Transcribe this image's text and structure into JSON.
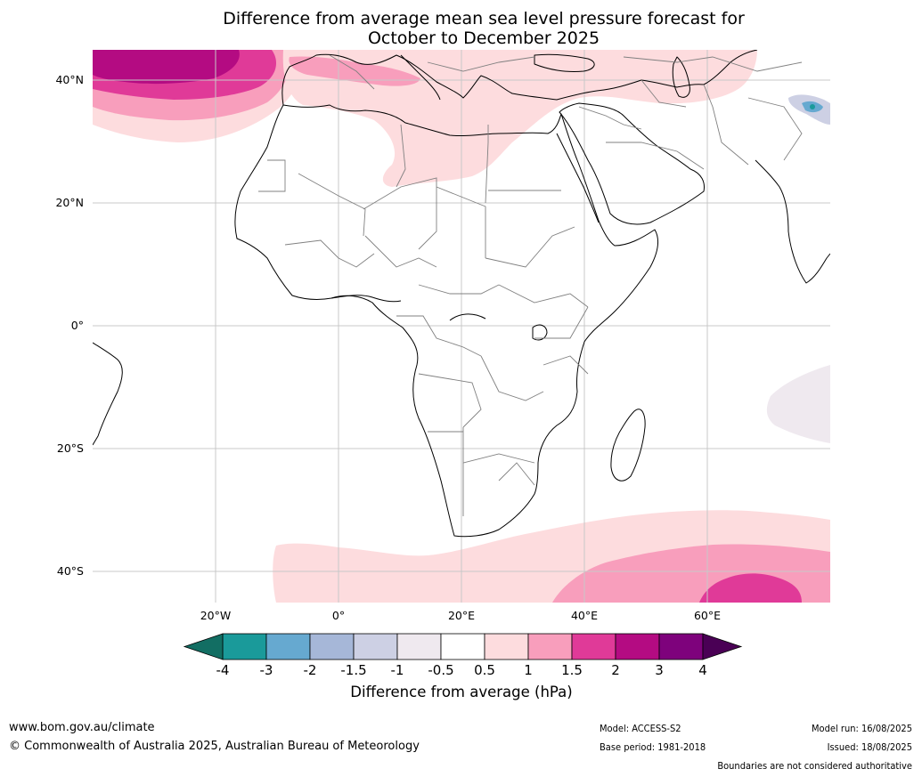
{
  "title": {
    "line1": "Difference from average mean sea level pressure forecast for",
    "line2": "October to December 2025"
  },
  "map": {
    "lat_labels": [
      "40°N",
      "20°N",
      "0°",
      "20°S",
      "40°S"
    ],
    "lon_labels": [
      "20°W",
      "0°",
      "20°E",
      "40°E",
      "60°E"
    ]
  },
  "colorbar": {
    "ticks": [
      "-4",
      "-3",
      "-2",
      "-1.5",
      "-1",
      "-0.5",
      "0.5",
      "1",
      "1.5",
      "2",
      "3",
      "4"
    ],
    "colors": [
      "#1a9a9a",
      "#66a9d0",
      "#a6b7d8",
      "#cdd0e4",
      "#efe9ef",
      "#ffffff",
      "#fddcde",
      "#f89ebc",
      "#e03a98",
      "#b40b82",
      "#7e027c"
    ],
    "under_color": "#126e63",
    "over_color": "#4a0055",
    "label": "Difference from average (hPa)"
  },
  "footer": {
    "website": "www.bom.gov.au/climate",
    "copyright": "© Commonwealth of Australia 2025, Australian Bureau of Meteorology",
    "model": "Model: ACCESS-S2",
    "base_period": "Base period: 1981-2018",
    "model_run": "Model run: 16/08/2025",
    "issued": "Issued: 18/08/2025",
    "disclaimer": "Boundaries are not considered authoritative"
  }
}
